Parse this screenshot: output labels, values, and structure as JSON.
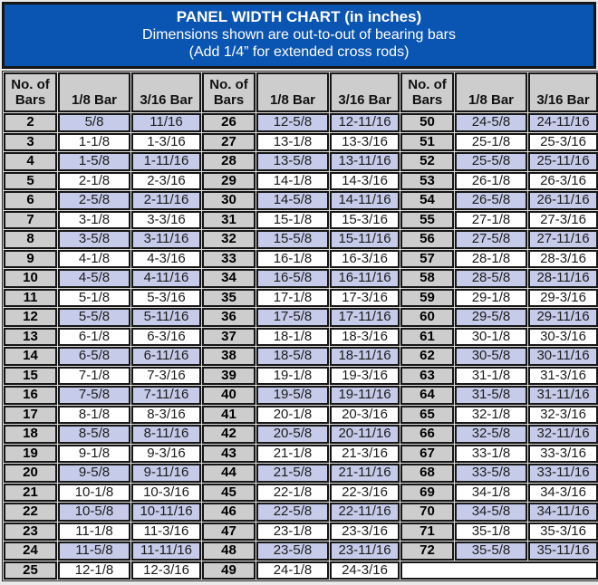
{
  "chart_data": {
    "type": "table",
    "title": "PANEL WIDTH CHART (in inches)",
    "subtitle_lines": [
      "Dimensions shown are out-to-out of bearing bars",
      "(Add 1/4” for extended cross rods)"
    ],
    "columns": [
      "No. of Bars",
      "1/8 Bar",
      "3/16 Bar",
      "No. of Bars",
      "1/8 Bar",
      "3/16 Bar",
      "No. of Bars",
      "1/8 Bar",
      "3/16 Bar"
    ],
    "rows": [
      [
        "2",
        "5/8",
        "11/16",
        "26",
        "12-5/8",
        "12-11/16",
        "50",
        "24-5/8",
        "24-11/16"
      ],
      [
        "3",
        "1-1/8",
        "1-3/16",
        "27",
        "13-1/8",
        "13-3/16",
        "51",
        "25-1/8",
        "25-3/16"
      ],
      [
        "4",
        "1-5/8",
        "1-11/16",
        "28",
        "13-5/8",
        "13-11/16",
        "52",
        "25-5/8",
        "25-11/16"
      ],
      [
        "5",
        "2-1/8",
        "2-3/16",
        "29",
        "14-1/8",
        "14-3/16",
        "53",
        "26-1/8",
        "26-3/16"
      ],
      [
        "6",
        "2-5/8",
        "2-11/16",
        "30",
        "14-5/8",
        "14-11/16",
        "54",
        "26-5/8",
        "26-11/16"
      ],
      [
        "7",
        "3-1/8",
        "3-3/16",
        "31",
        "15-1/8",
        "15-3/16",
        "55",
        "27-1/8",
        "27-3/16"
      ],
      [
        "8",
        "3-5/8",
        "3-11/16",
        "32",
        "15-5/8",
        "15-11/16",
        "56",
        "27-5/8",
        "27-11/16"
      ],
      [
        "9",
        "4-1/8",
        "4-3/16",
        "33",
        "16-1/8",
        "16-3/16",
        "57",
        "28-1/8",
        "28-3/16"
      ],
      [
        "10",
        "4-5/8",
        "4-11/16",
        "34",
        "16-5/8",
        "16-11/16",
        "58",
        "28-5/8",
        "28-11/16"
      ],
      [
        "11",
        "5-1/8",
        "5-3/16",
        "35",
        "17-1/8",
        "17-3/16",
        "59",
        "29-1/8",
        "29-3/16"
      ],
      [
        "12",
        "5-5/8",
        "5-11/16",
        "36",
        "17-5/8",
        "17-11/16",
        "60",
        "29-5/8",
        "29-11/16"
      ],
      [
        "13",
        "6-1/8",
        "6-3/16",
        "37",
        "18-1/8",
        "18-3/16",
        "61",
        "30-1/8",
        "30-3/16"
      ],
      [
        "14",
        "6-5/8",
        "6-11/16",
        "38",
        "18-5/8",
        "18-11/16",
        "62",
        "30-5/8",
        "30-11/16"
      ],
      [
        "15",
        "7-1/8",
        "7-3/16",
        "39",
        "19-1/8",
        "19-3/16",
        "63",
        "31-1/8",
        "31-3/16"
      ],
      [
        "16",
        "7-5/8",
        "7-11/16",
        "40",
        "19-5/8",
        "19-11/16",
        "64",
        "31-5/8",
        "31-11/16"
      ],
      [
        "17",
        "8-1/8",
        "8-3/16",
        "41",
        "20-1/8",
        "20-3/16",
        "65",
        "32-1/8",
        "32-3/16"
      ],
      [
        "18",
        "8-5/8",
        "8-11/16",
        "42",
        "20-5/8",
        "20-11/16",
        "66",
        "32-5/8",
        "32-11/16"
      ],
      [
        "19",
        "9-1/8",
        "9-3/16",
        "43",
        "21-1/8",
        "21-3/16",
        "67",
        "33-1/8",
        "33-3/16"
      ],
      [
        "20",
        "9-5/8",
        "9-11/16",
        "44",
        "21-5/8",
        "21-11/16",
        "68",
        "33-5/8",
        "33-11/16"
      ],
      [
        "21",
        "10-1/8",
        "10-3/16",
        "45",
        "22-1/8",
        "22-3/16",
        "69",
        "34-1/8",
        "34-3/16"
      ],
      [
        "22",
        "10-5/8",
        "10-11/16",
        "46",
        "22-5/8",
        "22-11/16",
        "70",
        "34-5/8",
        "34-11/16"
      ],
      [
        "23",
        "11-1/8",
        "11-3/16",
        "47",
        "23-1/8",
        "23-3/16",
        "71",
        "35-1/8",
        "35-3/16"
      ],
      [
        "24",
        "11-5/8",
        "11-11/16",
        "48",
        "23-5/8",
        "23-11/16",
        "72",
        "35-5/8",
        "35-11/16"
      ],
      [
        "25",
        "12-1/8",
        "12-3/16",
        "49",
        "24-1/8",
        "24-3/16",
        null,
        null,
        null
      ]
    ]
  },
  "colors": {
    "banner_blue": "#0b55b2",
    "banner_text": "#ffffff",
    "header_cell_gray": "#cdcdcd",
    "bars_column_gray": "#cdcdcd",
    "shaded_row_lavender": "#c6cbe9",
    "unshaded_row_white": "#ffffff",
    "border_black": "#161616"
  }
}
